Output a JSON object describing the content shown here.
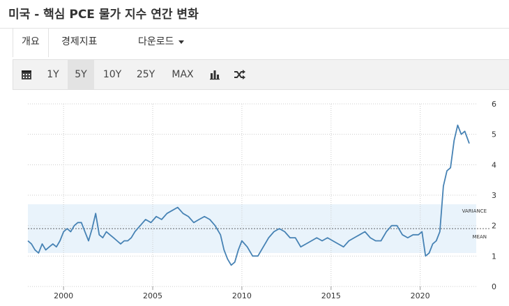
{
  "title": "미국 - 핵심 PCE 물가 지수 연간 변화",
  "tabs": [
    {
      "label": "개요",
      "active": true
    },
    {
      "label": "경제지표",
      "active": false
    },
    {
      "label": "다운로드",
      "active": false
    }
  ],
  "toolbar": {
    "icons": [
      "calendar-icon",
      "bar-chart-icon",
      "shuffle-icon"
    ],
    "ranges": [
      "1Y",
      "5Y",
      "10Y",
      "25Y",
      "MAX"
    ],
    "active_range": "5Y"
  },
  "chart_data": {
    "type": "line",
    "x_ticks": [
      "2000",
      "2005",
      "2010",
      "2015",
      "2020"
    ],
    "y_ticks": [
      "0",
      "1",
      "2",
      "3",
      "4",
      "5",
      "6"
    ],
    "ylim": [
      0,
      6
    ],
    "xlim": [
      1998.0,
      2022.75
    ],
    "grid": true,
    "mean": 1.9,
    "variance_band": [
      1.1,
      2.7
    ],
    "annotations": {
      "variance": "VARIANCE",
      "mean": "MEAN"
    },
    "line_color": "#4682b4",
    "band_color": "#e9f3fb",
    "series": [
      {
        "x": [
          1998.0,
          1998.2,
          1998.4,
          1998.6,
          1998.8,
          1999.0,
          1999.2,
          1999.4,
          1999.6,
          1999.8,
          2000.0,
          2000.2,
          2000.4,
          2000.6,
          2000.8,
          2001.0,
          2001.2,
          2001.4,
          2001.6,
          2001.8,
          2002.0,
          2002.2,
          2002.4,
          2002.6,
          2002.8,
          2003.0,
          2003.2,
          2003.4,
          2003.6,
          2003.8,
          2004.0,
          2004.3,
          2004.6,
          2004.9,
          2005.2,
          2005.5,
          2005.8,
          2006.1,
          2006.4,
          2006.7,
          2007.0,
          2007.3,
          2007.6,
          2007.9,
          2008.2,
          2008.5,
          2008.8,
          2009.0,
          2009.2,
          2009.4,
          2009.6,
          2009.8,
          2010.0,
          2010.3,
          2010.6,
          2010.9,
          2011.2,
          2011.5,
          2011.8,
          2012.1,
          2012.4,
          2012.7,
          2013.0,
          2013.3,
          2013.6,
          2013.9,
          2014.2,
          2014.5,
          2014.8,
          2015.1,
          2015.4,
          2015.7,
          2016.0,
          2016.3,
          2016.6,
          2016.9,
          2017.2,
          2017.5,
          2017.8,
          2018.1,
          2018.4,
          2018.7,
          2019.0,
          2019.3,
          2019.6,
          2019.9,
          2020.1,
          2020.3,
          2020.5,
          2020.7,
          2020.9,
          2021.1,
          2021.3,
          2021.5,
          2021.7,
          2021.9,
          2022.1,
          2022.3,
          2022.5,
          2022.75
        ],
        "y": [
          1.5,
          1.4,
          1.2,
          1.1,
          1.4,
          1.2,
          1.3,
          1.4,
          1.3,
          1.5,
          1.8,
          1.9,
          1.8,
          2.0,
          2.1,
          2.1,
          1.8,
          1.5,
          1.9,
          2.4,
          1.7,
          1.6,
          1.8,
          1.7,
          1.6,
          1.5,
          1.4,
          1.5,
          1.5,
          1.6,
          1.8,
          2.0,
          2.2,
          2.1,
          2.3,
          2.2,
          2.4,
          2.5,
          2.6,
          2.4,
          2.3,
          2.1,
          2.2,
          2.3,
          2.2,
          2.0,
          1.7,
          1.2,
          0.9,
          0.7,
          0.8,
          1.2,
          1.5,
          1.3,
          1.0,
          1.0,
          1.3,
          1.6,
          1.8,
          1.9,
          1.8,
          1.6,
          1.6,
          1.3,
          1.4,
          1.5,
          1.6,
          1.5,
          1.6,
          1.5,
          1.4,
          1.3,
          1.5,
          1.6,
          1.7,
          1.8,
          1.6,
          1.5,
          1.5,
          1.8,
          2.0,
          2.0,
          1.7,
          1.6,
          1.7,
          1.7,
          1.8,
          1.0,
          1.1,
          1.4,
          1.5,
          1.8,
          3.3,
          3.8,
          3.9,
          4.8,
          5.3,
          5.0,
          5.1,
          4.7
        ]
      }
    ]
  }
}
